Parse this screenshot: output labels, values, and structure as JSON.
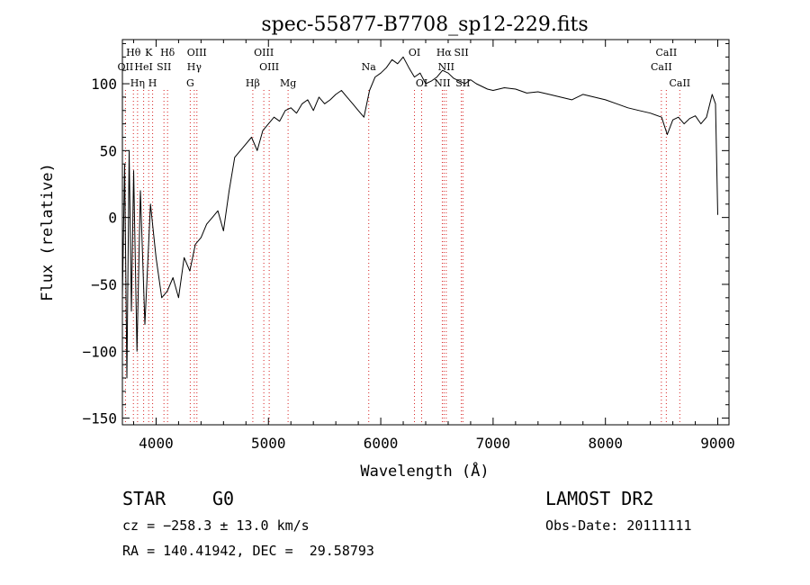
{
  "chart_data": {
    "type": "line",
    "title": "spec-55877-B7708_sp12-229.fits",
    "xlabel": "Wavelength (Å)",
    "ylabel": "Flux (relative)",
    "xlim": [
      3700,
      9100
    ],
    "ylim": [
      -155,
      133
    ],
    "xticks": [
      4000,
      5000,
      6000,
      7000,
      8000,
      9000
    ],
    "yticks": [
      -150,
      -100,
      -50,
      0,
      50,
      100
    ],
    "grid": false,
    "line_color": "#000000",
    "marker_line_color": "#d62020",
    "series": [
      {
        "x": [
          3700,
          3720,
          3740,
          3760,
          3780,
          3800,
          3830,
          3860,
          3900,
          3950,
          4000,
          4050,
          4100,
          4150,
          4200,
          4250,
          4300,
          4350,
          4400,
          4450,
          4500,
          4550,
          4600,
          4650,
          4700,
          4750,
          4800,
          4850,
          4900,
          4950,
          5000,
          5050,
          5100,
          5150,
          5200,
          5250,
          5300,
          5350,
          5400,
          5450,
          5500,
          5550,
          5600,
          5650,
          5700,
          5750,
          5800,
          5850,
          5900,
          5950,
          6000,
          6050,
          6100,
          6150,
          6200,
          6250,
          6300,
          6350,
          6400,
          6450,
          6500,
          6550,
          6600,
          6650,
          6700,
          6750,
          6800,
          6850,
          6900,
          6950,
          7000,
          7100,
          7200,
          7300,
          7400,
          7500,
          7600,
          7700,
          7800,
          7900,
          8000,
          8100,
          8200,
          8300,
          8400,
          8500,
          8550,
          8600,
          8650,
          8700,
          8750,
          8800,
          8850,
          8900,
          8950,
          8980,
          9000
        ],
        "y": [
          -60,
          40,
          -120,
          50,
          -70,
          35,
          -100,
          20,
          -80,
          10,
          -30,
          -60,
          -55,
          -45,
          -60,
          -30,
          -40,
          -20,
          -15,
          -5,
          0,
          5,
          -10,
          20,
          45,
          50,
          55,
          60,
          50,
          65,
          70,
          75,
          72,
          80,
          82,
          78,
          85,
          88,
          80,
          90,
          85,
          88,
          92,
          95,
          90,
          85,
          80,
          75,
          95,
          105,
          108,
          112,
          118,
          115,
          120,
          112,
          105,
          108,
          100,
          102,
          105,
          110,
          108,
          104,
          102,
          100,
          103,
          100,
          98,
          96,
          95,
          97,
          96,
          93,
          94,
          92,
          90,
          88,
          92,
          90,
          88,
          85,
          82,
          80,
          78,
          75,
          62,
          73,
          75,
          70,
          74,
          76,
          70,
          75,
          92,
          85,
          2
        ]
      }
    ],
    "line_markers": [
      {
        "label": "Hθ",
        "wave": 3798,
        "row": "top"
      },
      {
        "label": "K",
        "wave": 3934,
        "row": "top"
      },
      {
        "label": "Hδ",
        "wave": 4102,
        "row": "top"
      },
      {
        "label": "OIII",
        "wave": 4363,
        "row": "top"
      },
      {
        "label": "OIII",
        "wave": 4959,
        "row": "top"
      },
      {
        "label": "OI",
        "wave": 6300,
        "row": "top"
      },
      {
        "label": "Hα",
        "wave": 6563,
        "row": "top"
      },
      {
        "label": "SII",
        "wave": 6717,
        "row": "top"
      },
      {
        "label": "CaII",
        "wave": 8542,
        "row": "top"
      },
      {
        "label": "OII",
        "wave": 3727,
        "row": "mid"
      },
      {
        "label": "HeI",
        "wave": 3889,
        "row": "mid"
      },
      {
        "label": "SII",
        "wave": 4070,
        "row": "mid"
      },
      {
        "label": "Hγ",
        "wave": 4340,
        "row": "mid"
      },
      {
        "label": "OIII",
        "wave": 5007,
        "row": "mid"
      },
      {
        "label": "Na",
        "wave": 5893,
        "row": "mid"
      },
      {
        "label": "NII",
        "wave": 6583,
        "row": "mid"
      },
      {
        "label": "CaII",
        "wave": 8498,
        "row": "mid"
      },
      {
        "label": "Hη",
        "wave": 3835,
        "row": "low"
      },
      {
        "label": "H",
        "wave": 3969,
        "row": "low"
      },
      {
        "label": "G",
        "wave": 4304,
        "row": "low"
      },
      {
        "label": "Hβ",
        "wave": 4861,
        "row": "low"
      },
      {
        "label": "Mg",
        "wave": 5175,
        "row": "low"
      },
      {
        "label": "OI",
        "wave": 6364,
        "row": "low"
      },
      {
        "label": "NII",
        "wave": 6548,
        "row": "low"
      },
      {
        "label": "SII",
        "wave": 6731,
        "row": "low"
      },
      {
        "label": "CaII",
        "wave": 8662,
        "row": "low"
      }
    ]
  },
  "info": {
    "class": "STAR",
    "subclass": "G0",
    "cz": "cz = −258.3 ± 13.0 km/s",
    "coords": "RA = 140.41942, DEC =  29.58793",
    "survey": "LAMOST DR2",
    "obs_date": "Obs-Date: 20111111"
  }
}
